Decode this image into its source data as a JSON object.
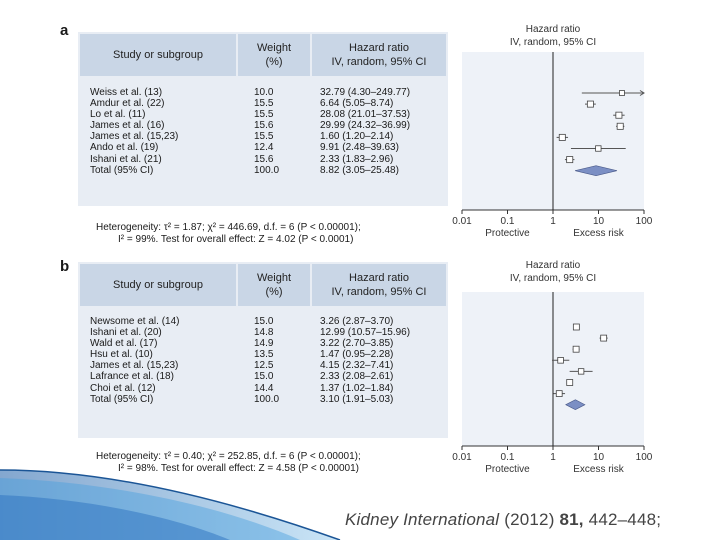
{
  "panels": [
    {
      "letter": "a",
      "header": {
        "study": "Study or subgroup",
        "weight": "Weight",
        "weight_unit": "(%)",
        "hr": "Hazard ratio",
        "hr_method": "IV, random, 95% CI"
      },
      "rows": [
        {
          "study": "Weiss et al. (13)",
          "weight": "10.0",
          "hr": "32.79 (4.30–249.77)"
        },
        {
          "study": "Amdur et al. (22)",
          "weight": "15.5",
          "hr": "6.64 (5.05–8.74)"
        },
        {
          "study": "Lo et al. (11)",
          "weight": "15.5",
          "hr": "28.08 (21.01–37.53)"
        },
        {
          "study": "James et al. (16)",
          "weight": "15.6",
          "hr": "29.99 (24.32–36.99)"
        },
        {
          "study": "James et al. (15,23)",
          "weight": "15.5",
          "hr": "1.60 (1.20–2.14)"
        },
        {
          "study": "Ando et al. (19)",
          "weight": "12.4",
          "hr": "9.91 (2.48–39.63)"
        },
        {
          "study": "Ishani et al. (21)",
          "weight": "15.6",
          "hr": "2.33 (1.83–2.96)"
        },
        {
          "study": "Total (95% CI)",
          "weight": "100.0",
          "hr": "8.82 (3.05–25.48)"
        }
      ],
      "heterogeneity_line1": "Heterogeneity: τ² = 1.87; χ² = 446.69, d.f. = 6 (P < 0.00001);",
      "heterogeneity_line2": "I² = 99%. Test for overall effect: Z = 4.02 (P < 0.0001)"
    },
    {
      "letter": "b",
      "header": {
        "study": "Study or subgroup",
        "weight": "Weight",
        "weight_unit": "(%)",
        "hr": "Hazard ratio",
        "hr_method": "IV, random, 95% CI"
      },
      "rows": [
        {
          "study": "Newsome et al. (14)",
          "weight": "15.0",
          "hr": "3.26 (2.87–3.70)"
        },
        {
          "study": "Ishani et al. (20)",
          "weight": "14.8",
          "hr": "12.99 (10.57–15.96)"
        },
        {
          "study": "Wald et al. (17)",
          "weight": "14.9",
          "hr": "3.22 (2.70–3.85)"
        },
        {
          "study": "Hsu et al. (10)",
          "weight": "13.5",
          "hr": "1.47 (0.95–2.28)"
        },
        {
          "study": "James et al. (15,23)",
          "weight": "12.5",
          "hr": "4.15 (2.32–7.41)"
        },
        {
          "study": "Lafrance et al. (18)",
          "weight": "15.0",
          "hr": "2.33 (2.08–2.61)"
        },
        {
          "study": "Choi et al. (12)",
          "weight": "14.4",
          "hr": "1.37 (1.02–1.84)"
        },
        {
          "study": "Total (95% CI)",
          "weight": "100.0",
          "hr": "3.10 (1.91–5.03)"
        }
      ],
      "heterogeneity_line1": "Heterogeneity: τ² = 0.40; χ² = 252.85, d.f. = 6 (P < 0.00001);",
      "heterogeneity_line2": "I² = 98%. Test for overall effect: Z = 4.58 (P < 0.00001)"
    }
  ],
  "chart_data": [
    {
      "type": "forest",
      "title": "Hazard ratio",
      "subtitle": "IV, random, 95% CI",
      "x_scale": "log",
      "xlim": [
        0.01,
        100
      ],
      "x_ticks": [
        "0.01",
        "0.1",
        "1",
        "10",
        "100"
      ],
      "reference_line": 1,
      "left_label": "Protective",
      "right_label": "Excess risk",
      "studies": [
        {
          "hr": 32.79,
          "lo": 4.3,
          "hi": 249.77,
          "weight": 10.0
        },
        {
          "hr": 6.64,
          "lo": 5.05,
          "hi": 8.74,
          "weight": 15.5
        },
        {
          "hr": 28.08,
          "lo": 21.01,
          "hi": 37.53,
          "weight": 15.5
        },
        {
          "hr": 29.99,
          "lo": 24.32,
          "hi": 36.99,
          "weight": 15.6
        },
        {
          "hr": 1.6,
          "lo": 1.2,
          "hi": 2.14,
          "weight": 15.5
        },
        {
          "hr": 9.91,
          "lo": 2.48,
          "hi": 39.63,
          "weight": 12.4
        },
        {
          "hr": 2.33,
          "lo": 1.83,
          "hi": 2.96,
          "weight": 15.6
        }
      ],
      "total": {
        "hr": 8.82,
        "lo": 3.05,
        "hi": 25.48
      }
    },
    {
      "type": "forest",
      "title": "Hazard ratio",
      "subtitle": "IV, random, 95% CI",
      "x_scale": "log",
      "xlim": [
        0.01,
        100
      ],
      "x_ticks": [
        "0.01",
        "0.1",
        "1",
        "10",
        "100"
      ],
      "reference_line": 1,
      "left_label": "Protective",
      "right_label": "Excess risk",
      "studies": [
        {
          "hr": 3.26,
          "lo": 2.87,
          "hi": 3.7,
          "weight": 15.0
        },
        {
          "hr": 12.99,
          "lo": 10.57,
          "hi": 15.96,
          "weight": 14.8
        },
        {
          "hr": 3.22,
          "lo": 2.7,
          "hi": 3.85,
          "weight": 14.9
        },
        {
          "hr": 1.47,
          "lo": 0.95,
          "hi": 2.28,
          "weight": 13.5
        },
        {
          "hr": 4.15,
          "lo": 2.32,
          "hi": 7.41,
          "weight": 12.5
        },
        {
          "hr": 2.33,
          "lo": 2.08,
          "hi": 2.61,
          "weight": 15.0
        },
        {
          "hr": 1.37,
          "lo": 1.02,
          "hi": 1.84,
          "weight": 14.4
        }
      ],
      "total": {
        "hr": 3.1,
        "lo": 1.91,
        "hi": 5.03
      }
    }
  ],
  "citation": {
    "journal": "Kidney International",
    "year": "(2012)",
    "volume": "81,",
    "pages": "442–448;"
  },
  "colors": {
    "header": "#c9d6e6",
    "table_bg": "#e8edf4",
    "plot_bg": "#eef2f8",
    "diamond": "#7b8fc4",
    "deco": "#3a86c8"
  }
}
